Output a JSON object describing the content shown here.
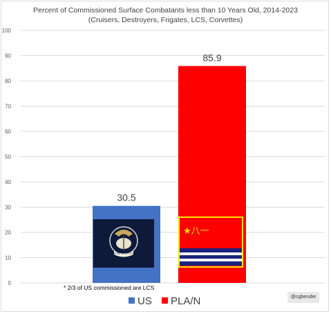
{
  "chart_data": {
    "type": "bar",
    "title": "Percent of Commissioned Surface Combatants less than 10 Years Old, 2014-2023",
    "subtitle": "(Cruisers, Destroyers, Frigates, LCS, Corvettes)",
    "categories": [
      "US",
      "PLA/N"
    ],
    "values": [
      30.5,
      85.9
    ],
    "data_labels": [
      "30.5",
      "85.9"
    ],
    "colors": [
      "#4472c4",
      "#ff0000"
    ],
    "ylim": [
      0,
      100
    ],
    "yticks": [
      0,
      10,
      20,
      30,
      40,
      50,
      60,
      70,
      80,
      90,
      100
    ],
    "grid": true,
    "legend": {
      "placement": "bottom",
      "entries": [
        "US",
        "PLA/N"
      ]
    },
    "annotation": "* 2/3 of US commissioned are LCS",
    "credit": "@cgberube"
  },
  "flags": {
    "us_navy": {
      "banner_text": "UNITED STATES NAVY"
    },
    "pla_navy": {
      "glyph": "★八一"
    }
  }
}
